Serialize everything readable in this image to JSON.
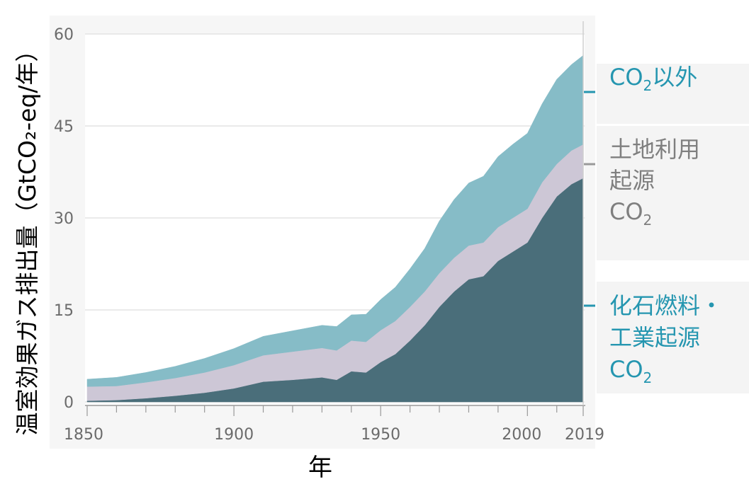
{
  "chart_data": {
    "type": "area",
    "stacked": true,
    "xlabel": "年",
    "ylabel": "温室効果ガス排出量（GtCO₂-eq/年）",
    "ylim": [
      0,
      60
    ],
    "xlim": [
      1850,
      2019
    ],
    "y_ticks": [
      0,
      15,
      30,
      45,
      60
    ],
    "x_ticks": [
      1850,
      1900,
      1950,
      2000,
      2019
    ],
    "grid": "horizontal",
    "legend_position": "right",
    "x": [
      1850,
      1860,
      1870,
      1880,
      1890,
      1900,
      1910,
      1920,
      1930,
      1935,
      1940,
      1945,
      1950,
      1955,
      1960,
      1965,
      1970,
      1975,
      1980,
      1985,
      1990,
      1995,
      2000,
      2005,
      2010,
      2015,
      2019
    ],
    "series": [
      {
        "name": "化石燃料・工業起源CO₂",
        "color": "#4a6e7a",
        "values": [
          0.2,
          0.3,
          0.6,
          1.0,
          1.5,
          2.2,
          3.3,
          3.6,
          4.0,
          3.6,
          5.0,
          4.8,
          6.5,
          7.8,
          10.0,
          12.5,
          15.5,
          18.0,
          20.0,
          20.5,
          23.0,
          24.5,
          26.0,
          30.0,
          33.5,
          35.5,
          36.5
        ]
      },
      {
        "name": "土地利用起源CO₂",
        "color": "#cdc7d6",
        "values": [
          2.3,
          2.3,
          2.6,
          2.9,
          3.3,
          3.8,
          4.3,
          4.6,
          4.8,
          4.8,
          5.0,
          5.0,
          5.2,
          5.4,
          5.5,
          5.5,
          5.5,
          5.5,
          5.5,
          5.5,
          5.5,
          5.5,
          5.5,
          5.8,
          5.3,
          5.5,
          5.5
        ]
      },
      {
        "name": "CO₂以外",
        "color": "#86bcc7",
        "values": [
          1.2,
          1.4,
          1.6,
          1.9,
          2.3,
          2.7,
          3.1,
          3.4,
          3.7,
          3.9,
          4.2,
          4.5,
          5.0,
          5.5,
          6.2,
          7.0,
          8.5,
          9.5,
          10.2,
          10.8,
          11.5,
          12.0,
          12.3,
          12.8,
          13.8,
          14.0,
          14.5
        ]
      }
    ],
    "legend": {
      "non_co2": {
        "pre": "CO",
        "sub": "2",
        "post": "以外",
        "color": "#2596b0"
      },
      "land_use": {
        "line1": "土地利用",
        "line2": "起源",
        "pre": "CO",
        "sub": "2",
        "color": "#7f7f7f"
      },
      "fossil": {
        "line1": "化石燃料・",
        "line2": "工業起源",
        "pre": "CO",
        "sub": "2",
        "color": "#2596b0"
      }
    }
  }
}
